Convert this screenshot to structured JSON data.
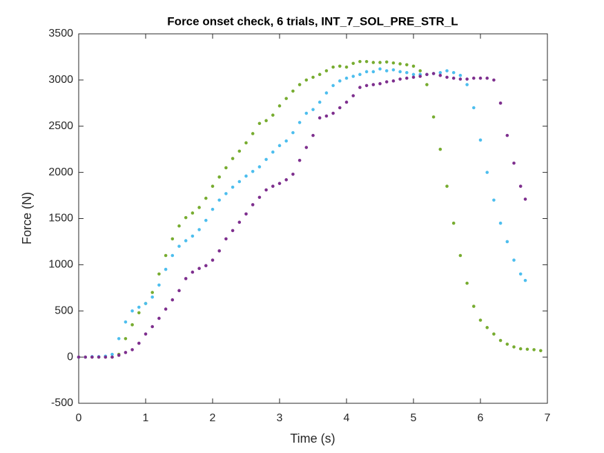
{
  "chart_data": {
    "type": "scatter",
    "title": "Force onset check, 6 trials, INT_7_SOL_PRE_STR_L",
    "xlabel": "Time (s)",
    "ylabel": "Force (N)",
    "xlim": [
      0,
      7
    ],
    "xticks": [
      0,
      1,
      2,
      3,
      4,
      5,
      6,
      7
    ],
    "ylim": [
      -500,
      3500
    ],
    "yticks": [
      -500,
      0,
      500,
      1000,
      1500,
      2000,
      2500,
      3000,
      3500
    ],
    "series": [
      {
        "color": "#77ac30",
        "x": [
          0,
          0.1,
          0.2,
          0.3,
          0.4,
          0.5,
          0.6,
          0.7,
          0.8,
          0.9,
          1.0,
          1.1,
          1.2,
          1.3,
          1.4,
          1.5,
          1.6,
          1.7,
          1.8,
          1.9,
          2.0,
          2.1,
          2.2,
          2.3,
          2.4,
          2.5,
          2.6,
          2.7,
          2.8,
          2.9,
          3.0,
          3.1,
          3.2,
          3.3,
          3.4,
          3.5,
          3.6,
          3.7,
          3.8,
          3.9,
          4.0,
          4.1,
          4.2,
          4.3,
          4.4,
          4.5,
          4.6,
          4.7,
          4.8,
          4.9,
          5.0,
          5.1,
          5.2,
          5.3,
          5.4,
          5.5,
          5.6,
          5.7,
          5.8,
          5.9,
          6.0,
          6.1,
          6.2,
          6.3,
          6.4,
          6.5,
          6.6,
          6.7,
          6.8,
          6.9
        ],
        "values": [
          0,
          0,
          0,
          0,
          0,
          0,
          30,
          200,
          350,
          480,
          580,
          700,
          900,
          1100,
          1280,
          1420,
          1510,
          1560,
          1620,
          1720,
          1850,
          1950,
          2050,
          2150,
          2230,
          2320,
          2420,
          2530,
          2560,
          2620,
          2720,
          2800,
          2880,
          2950,
          3000,
          3030,
          3060,
          3100,
          3140,
          3150,
          3140,
          3180,
          3200,
          3200,
          3190,
          3190,
          3195,
          3185,
          3175,
          3165,
          3150,
          3100,
          2950,
          2600,
          2250,
          1850,
          1450,
          1100,
          800,
          550,
          400,
          320,
          250,
          180,
          140,
          110,
          90,
          85,
          80,
          70
        ]
      },
      {
        "color": "#4dbeee",
        "x": [
          0,
          0.1,
          0.2,
          0.3,
          0.4,
          0.5,
          0.6,
          0.7,
          0.8,
          0.9,
          1.0,
          1.1,
          1.2,
          1.3,
          1.4,
          1.5,
          1.6,
          1.7,
          1.8,
          1.9,
          2.0,
          2.1,
          2.2,
          2.3,
          2.4,
          2.5,
          2.6,
          2.7,
          2.8,
          2.9,
          3.0,
          3.1,
          3.2,
          3.3,
          3.4,
          3.5,
          3.6,
          3.7,
          3.8,
          3.9,
          4.0,
          4.1,
          4.2,
          4.3,
          4.4,
          4.5,
          4.6,
          4.7,
          4.8,
          4.9,
          5.0,
          5.1,
          5.2,
          5.3,
          5.4,
          5.5,
          5.6,
          5.7,
          5.8,
          5.9,
          6.0,
          6.1,
          6.2,
          6.3,
          6.4,
          6.5,
          6.6,
          6.67
        ],
        "values": [
          0,
          0,
          5,
          5,
          10,
          30,
          200,
          380,
          500,
          540,
          580,
          650,
          780,
          950,
          1100,
          1200,
          1260,
          1310,
          1380,
          1480,
          1600,
          1700,
          1770,
          1840,
          1900,
          1960,
          2010,
          2060,
          2140,
          2220,
          2290,
          2340,
          2430,
          2540,
          2640,
          2680,
          2760,
          2860,
          2940,
          2990,
          3020,
          3040,
          3060,
          3090,
          3090,
          3120,
          3100,
          3110,
          3090,
          3080,
          3060,
          3060,
          3060,
          3070,
          3080,
          3100,
          3080,
          3050,
          2950,
          2700,
          2350,
          2000,
          1700,
          1450,
          1250,
          1050,
          900,
          830
        ]
      },
      {
        "color": "#7e2f8e",
        "x": [
          0,
          0.1,
          0.2,
          0.3,
          0.4,
          0.5,
          0.6,
          0.7,
          0.8,
          0.9,
          1.0,
          1.1,
          1.2,
          1.3,
          1.4,
          1.5,
          1.6,
          1.7,
          1.8,
          1.9,
          2.0,
          2.1,
          2.2,
          2.3,
          2.4,
          2.5,
          2.6,
          2.7,
          2.8,
          2.9,
          3.0,
          3.1,
          3.2,
          3.3,
          3.4,
          3.5,
          3.6,
          3.7,
          3.8,
          3.9,
          4.0,
          4.1,
          4.2,
          4.3,
          4.4,
          4.5,
          4.6,
          4.7,
          4.8,
          4.9,
          5.0,
          5.1,
          5.2,
          5.3,
          5.4,
          5.5,
          5.6,
          5.7,
          5.8,
          5.9,
          6.0,
          6.1,
          6.2,
          6.3,
          6.4,
          6.5,
          6.6,
          6.67
        ],
        "values": [
          0,
          0,
          0,
          0,
          0,
          0,
          20,
          50,
          80,
          150,
          250,
          330,
          420,
          520,
          620,
          720,
          850,
          920,
          960,
          990,
          1050,
          1150,
          1280,
          1370,
          1460,
          1550,
          1650,
          1730,
          1810,
          1850,
          1880,
          1920,
          1980,
          2130,
          2270,
          2400,
          2590,
          2610,
          2640,
          2700,
          2760,
          2830,
          2920,
          2940,
          2950,
          2960,
          2980,
          2990,
          3010,
          3020,
          3030,
          3040,
          3060,
          3070,
          3050,
          3030,
          3020,
          3010,
          3010,
          3020,
          3020,
          3020,
          3000,
          2750,
          2400,
          2100,
          1850,
          1710
        ]
      }
    ]
  }
}
